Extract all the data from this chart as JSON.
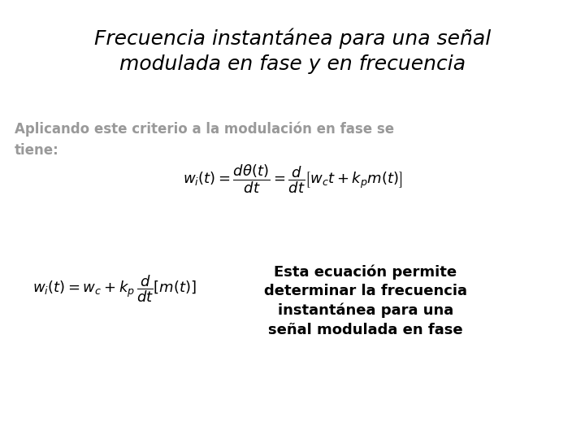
{
  "title_line1": "Frecuencia instantánea para una señal",
  "title_line2": "modulada en fase y en frecuencia",
  "subtitle": "Aplicando este criterio a la modulación en fase se\ntiene:",
  "eq1": "$w_{i}(t) = \\dfrac{d\\theta(t)}{dt} = \\dfrac{d}{dt}\\left[w_{c}t + k_{p}m(t)\\right]$",
  "eq2": "$w_{i}(t) = w_{c} + k_{p}\\,\\dfrac{d}{dt}\\left[m(t)\\right]$",
  "note_line1": "Esta ecuación permite",
  "note_line2": "determinar la frecuencia",
  "note_line3": "instantánea para una",
  "note_line4": "señal modulada en fase",
  "bg_color": "#ffffff",
  "title_color": "#000000",
  "subtitle_color": "#999999",
  "eq_color": "#000000",
  "note_color": "#000000",
  "title_fontsize": 18,
  "subtitle_fontsize": 12,
  "eq1_fontsize": 13,
  "eq2_fontsize": 13,
  "note_fontsize": 13
}
